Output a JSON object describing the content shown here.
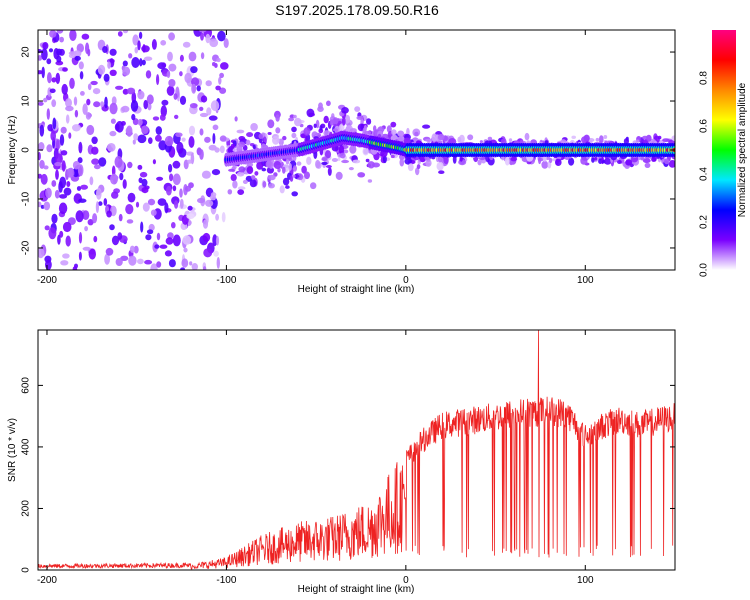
{
  "title": "S197.2025.178.09.50.R16",
  "chart_data": [
    {
      "type": "heatmap",
      "xlabel": "Height of straight line (km)",
      "ylabel": "Frequency (Hz)",
      "xlim": [
        -205,
        150
      ],
      "ylim": [
        -24.5,
        24.5
      ],
      "xticks": [
        -200,
        -100,
        0,
        100
      ],
      "yticks": [
        -20,
        -10,
        0,
        10,
        20
      ],
      "colorbar": {
        "label": "Normalized spectral amplitude",
        "ticks": [
          "0.0",
          "0.2",
          "0.4",
          "0.6",
          "0.8"
        ],
        "range": [
          0,
          1
        ],
        "colormap": [
          "#ffffff",
          "#7a00ff",
          "#0000ff",
          "#00e8ff",
          "#00ff00",
          "#ffff00",
          "#ff8800",
          "#ff0000",
          "#ff0080"
        ]
      },
      "ridge": {
        "x": [
          -100,
          -80,
          -60,
          -45,
          -35,
          -25,
          -15,
          -5,
          0,
          20,
          60,
          100,
          150
        ],
        "y": [
          -2,
          -1,
          0,
          1.5,
          2.5,
          2,
          1.2,
          0.5,
          0,
          0,
          0,
          0,
          0
        ]
      }
    },
    {
      "type": "line",
      "xlabel": "Height of straight line (km)",
      "ylabel": "SNR (10 * v/v)",
      "xlim": [
        -205,
        150
      ],
      "ylim": [
        0,
        780
      ],
      "xticks": [
        -200,
        -100,
        0,
        100
      ],
      "yticks": [
        0,
        200,
        400,
        600
      ],
      "color": "#ee2222",
      "envelope": {
        "x": [
          -205,
          -120,
          -100,
          -80,
          -60,
          -40,
          -20,
          -10,
          0,
          10,
          20,
          40,
          60,
          80,
          90,
          100,
          110,
          120,
          130,
          150
        ],
        "y": [
          15,
          18,
          40,
          110,
          150,
          170,
          220,
          300,
          380,
          450,
          500,
          520,
          540,
          550,
          540,
          460,
          500,
          520,
          500,
          530
        ]
      },
      "spike": {
        "x": 74,
        "y": 780
      }
    }
  ]
}
